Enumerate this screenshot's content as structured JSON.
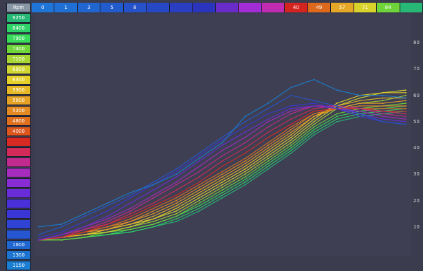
{
  "header_label": "Rpm",
  "columns": [
    {
      "label": "0",
      "color": "#1f74d8"
    },
    {
      "label": "1",
      "color": "#1f6fd4"
    },
    {
      "label": "3",
      "color": "#2166d0"
    },
    {
      "label": "5",
      "color": "#225ccc"
    },
    {
      "label": "8",
      "color": "#2552c8"
    },
    {
      "label": "",
      "color": "#2748c4"
    },
    {
      "label": "",
      "color": "#293ec0"
    },
    {
      "label": "",
      "color": "#2a34bc"
    },
    {
      "label": "",
      "color": "#6a2cc8"
    },
    {
      "label": "",
      "color": "#a22cd6"
    },
    {
      "label": "",
      "color": "#c02bb0"
    },
    {
      "label": "40",
      "color": "#d42420"
    },
    {
      "label": "49",
      "color": "#dd6a1c"
    },
    {
      "label": "57",
      "color": "#e4a826"
    },
    {
      "label": "71",
      "color": "#d8d22a"
    },
    {
      "label": "84",
      "color": "#6fd43a"
    },
    {
      "label": "",
      "color": "#26b874"
    }
  ],
  "rpm_rows": [
    {
      "label": "9250",
      "color": "#26b874"
    },
    {
      "label": "8400",
      "color": "#2ed268"
    },
    {
      "label": "7900",
      "color": "#39dc5a"
    },
    {
      "label": "7400",
      "color": "#6fd63a"
    },
    {
      "label": "7100",
      "color": "#a7d633"
    },
    {
      "label": "6800",
      "color": "#d2d630"
    },
    {
      "label": "6300",
      "color": "#e6d02a"
    },
    {
      "label": "5900",
      "color": "#e7b826"
    },
    {
      "label": "5600",
      "color": "#e6a224"
    },
    {
      "label": "5200",
      "color": "#e48a22"
    },
    {
      "label": "4800",
      "color": "#e0701e"
    },
    {
      "label": "4000",
      "color": "#dc561e"
    },
    {
      "label": "",
      "color": "#d82a22"
    },
    {
      "label": "",
      "color": "#d42a5a"
    },
    {
      "label": "",
      "color": "#c22b8e"
    },
    {
      "label": "",
      "color": "#a62cbe"
    },
    {
      "label": "",
      "color": "#882cd4"
    },
    {
      "label": "",
      "color": "#6a2cd8"
    },
    {
      "label": "",
      "color": "#4a30d8"
    },
    {
      "label": "",
      "color": "#3a36d6"
    },
    {
      "label": "",
      "color": "#2f44d4"
    },
    {
      "label": "",
      "color": "#2656d2"
    },
    {
      "label": "1600",
      "color": "#1f66d0"
    },
    {
      "label": "1300",
      "color": "#1c74d0"
    },
    {
      "label": "1150",
      "color": "#1a7ed2"
    }
  ],
  "chart_data": {
    "type": "line",
    "title": "",
    "xlabel": "",
    "ylabel": "",
    "x": [
      0,
      1,
      2,
      3,
      4,
      5,
      6,
      7,
      8,
      9,
      10,
      11,
      12,
      13,
      14,
      15,
      16
    ],
    "ylim": [
      0,
      90
    ],
    "yticks": [
      "10",
      "20",
      "30",
      "40",
      "50",
      "60",
      "70",
      "80"
    ],
    "yticks_values": [
      10,
      20,
      30,
      40,
      50,
      60,
      70,
      80
    ],
    "grid": false,
    "series": [
      {
        "color": "#26b874",
        "values": [
          5,
          5,
          6,
          7,
          8,
          10,
          12,
          16,
          21,
          26,
          32,
          38,
          45,
          50,
          52,
          53,
          54
        ]
      },
      {
        "color": "#2ed268",
        "values": [
          5,
          5,
          6,
          7,
          8,
          10,
          13,
          17,
          22,
          27,
          33,
          39,
          46,
          51,
          53,
          54,
          55
        ]
      },
      {
        "color": "#39dc5a",
        "values": [
          5,
          5,
          6,
          7,
          9,
          11,
          14,
          18,
          23,
          28,
          34,
          40,
          47,
          52,
          54,
          55,
          56
        ]
      },
      {
        "color": "#6fd63a",
        "values": [
          5,
          5,
          6,
          8,
          9,
          11,
          14,
          19,
          24,
          29,
          35,
          41,
          48,
          53,
          55,
          56,
          57
        ]
      },
      {
        "color": "#a7d633",
        "values": [
          5,
          6,
          7,
          8,
          10,
          12,
          15,
          20,
          25,
          30,
          36,
          42,
          49,
          55,
          57,
          58,
          60
        ]
      },
      {
        "color": "#d2d630",
        "values": [
          5,
          6,
          7,
          8,
          10,
          13,
          16,
          21,
          26,
          31,
          37,
          43,
          50,
          56,
          59,
          61,
          62
        ]
      },
      {
        "color": "#e6d02a",
        "values": [
          5,
          6,
          7,
          9,
          11,
          13,
          17,
          22,
          27,
          32,
          38,
          44,
          51,
          57,
          60,
          61,
          61
        ]
      },
      {
        "color": "#e7b826",
        "values": [
          5,
          6,
          7,
          9,
          11,
          14,
          18,
          23,
          28,
          33,
          39,
          45,
          52,
          56,
          58,
          59,
          59
        ]
      },
      {
        "color": "#e6a224",
        "values": [
          5,
          6,
          8,
          9,
          12,
          15,
          19,
          24,
          29,
          34,
          40,
          46,
          52,
          55,
          57,
          57,
          58
        ]
      },
      {
        "color": "#e48a22",
        "values": [
          5,
          6,
          8,
          10,
          12,
          16,
          20,
          25,
          30,
          35,
          41,
          47,
          53,
          55,
          56,
          56,
          56
        ]
      },
      {
        "color": "#e0701e",
        "values": [
          5,
          6,
          8,
          10,
          13,
          17,
          21,
          26,
          31,
          36,
          42,
          48,
          53,
          55,
          55,
          55,
          55
        ]
      },
      {
        "color": "#d82a22",
        "values": [
          5,
          6,
          8,
          11,
          14,
          18,
          22,
          27,
          33,
          38,
          44,
          49,
          54,
          55,
          55,
          54,
          54
        ]
      },
      {
        "color": "#d42a5a",
        "values": [
          5,
          6,
          9,
          11,
          15,
          19,
          24,
          29,
          35,
          40,
          46,
          51,
          55,
          56,
          55,
          54,
          53
        ]
      },
      {
        "color": "#c22b8e",
        "values": [
          5,
          7,
          9,
          12,
          16,
          21,
          26,
          31,
          37,
          42,
          48,
          53,
          56,
          56,
          55,
          53,
          52
        ]
      },
      {
        "color": "#a62cbe",
        "values": [
          5,
          7,
          10,
          13,
          17,
          22,
          27,
          33,
          39,
          44,
          50,
          54,
          56,
          55,
          54,
          52,
          51
        ]
      },
      {
        "color": "#6a2cd8",
        "values": [
          5,
          7,
          10,
          14,
          19,
          24,
          29,
          35,
          41,
          46,
          51,
          55,
          56,
          55,
          53,
          51,
          50
        ]
      },
      {
        "color": "#3a36d6",
        "values": [
          6,
          8,
          12,
          16,
          21,
          26,
          31,
          37,
          43,
          48,
          53,
          56,
          57,
          55,
          52,
          50,
          49
        ]
      },
      {
        "color": "#2656d2",
        "values": [
          7,
          10,
          14,
          18,
          22,
          27,
          32,
          38,
          44,
          50,
          55,
          60,
          58,
          56,
          53,
          50,
          49
        ]
      },
      {
        "color": "#1a7ed2",
        "values": [
          10,
          11,
          15,
          19,
          23,
          26,
          30,
          36,
          42,
          52,
          57,
          63,
          66,
          62,
          60,
          60,
          59
        ]
      }
    ]
  }
}
